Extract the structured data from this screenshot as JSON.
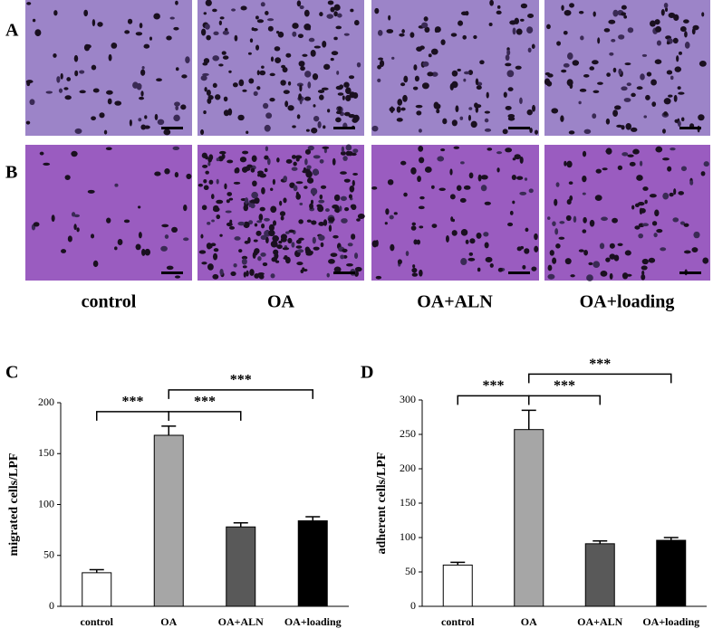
{
  "panel_labels": [
    "A",
    "B",
    "C",
    "D"
  ],
  "image_labels": [
    "control",
    "OA",
    "OA+ALN",
    "OA+loading"
  ],
  "chart_data": [
    {
      "type": "bar",
      "ylabel": "migrated cells/LPF",
      "categories": [
        "control",
        "OA",
        "OA+ALN",
        "OA+loading"
      ],
      "values": [
        33,
        168,
        78,
        84
      ],
      "errors": [
        3,
        9,
        4,
        4
      ],
      "colors": [
        "#ffffff",
        "#a6a6a6",
        "#595959",
        "#000000"
      ],
      "ylim": [
        0,
        200
      ],
      "yticks": [
        0,
        50,
        100,
        150,
        200
      ],
      "annotations": [
        {
          "label": "***",
          "from": "control",
          "to": "OA"
        },
        {
          "label": "***",
          "from": "OA",
          "to": "OA+ALN"
        },
        {
          "label": "***",
          "from": "OA",
          "to": "OA+loading"
        }
      ]
    },
    {
      "type": "bar",
      "ylabel": "adherent cells/LPF",
      "categories": [
        "control",
        "OA",
        "OA+ALN",
        "OA+loading"
      ],
      "values": [
        60,
        257,
        91,
        96
      ],
      "errors": [
        4,
        28,
        4,
        4
      ],
      "colors": [
        "#ffffff",
        "#a6a6a6",
        "#595959",
        "#000000"
      ],
      "ylim": [
        0,
        300
      ],
      "yticks": [
        0,
        50,
        100,
        150,
        200,
        250,
        300
      ],
      "annotations": [
        {
          "label": "***",
          "from": "control",
          "to": "OA"
        },
        {
          "label": "***",
          "from": "OA",
          "to": "OA+ALN"
        },
        {
          "label": "***",
          "from": "OA",
          "to": "OA+loading"
        }
      ]
    }
  ]
}
